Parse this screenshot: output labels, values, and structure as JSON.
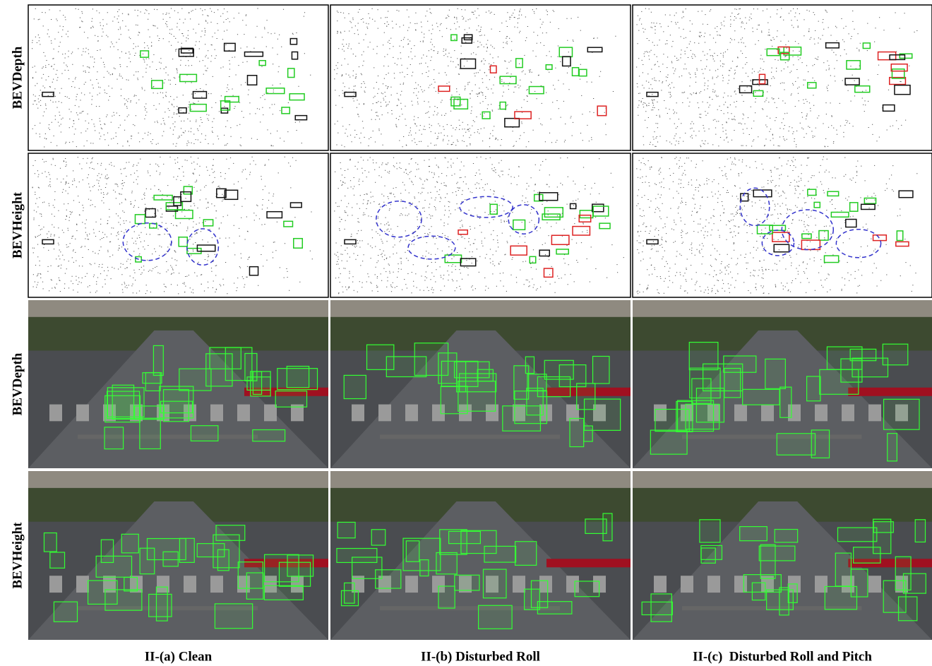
{
  "row_labels": [
    "BEVDepth",
    "BEVHeight",
    "BEVDepth",
    "BEVHeight"
  ],
  "column_labels": [
    "II-(a) Clean",
    "II-(b) Disturbed Roll",
    "II-(c)  Disturbed Roll and Pitch"
  ]
}
